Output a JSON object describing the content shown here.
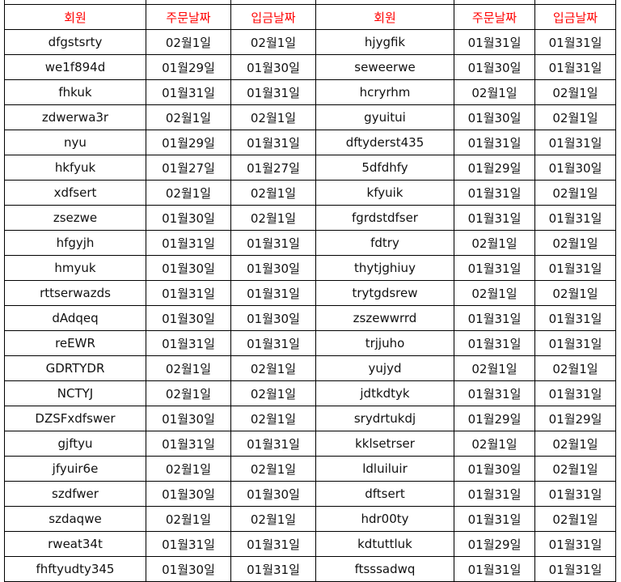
{
  "header_color": "#ff0000",
  "headers": [
    "회원",
    "주문날짜",
    "입금날짜",
    "회원",
    "주문날짜",
    "입금날짜"
  ],
  "rows": [
    [
      "dfgstsrty",
      "02월1일",
      "02월1일",
      "hjygfik",
      "01월31일",
      "01월31일"
    ],
    [
      "we1f894d",
      "01월29일",
      "01월30일",
      "seweerwe",
      "01월30일",
      "01월31일"
    ],
    [
      "fhkuk",
      "01월31일",
      "01월31일",
      "hcryrhm",
      "02월1일",
      "02월1일"
    ],
    [
      "zdwerwa3r",
      "02월1일",
      "02월1일",
      "gyuitui",
      "01월30일",
      "02월1일"
    ],
    [
      "nyu",
      "01월29일",
      "01월31일",
      "dftyderst435",
      "01월31일",
      "01월31일"
    ],
    [
      "hkfyuk",
      "01월27일",
      "01월27일",
      "5dfdhfy",
      "01월29일",
      "01월30일"
    ],
    [
      "xdfsert",
      "02월1일",
      "02월1일",
      "kfyuik",
      "01월31일",
      "02월1일"
    ],
    [
      "zsezwe",
      "01월30일",
      "02월1일",
      "fgrdstdfser",
      "01월31일",
      "01월31일"
    ],
    [
      "hfgyjh",
      "01월31일",
      "01월31일",
      "fdtry",
      "02월1일",
      "02월1일"
    ],
    [
      "hmyuk",
      "01월30일",
      "01월30일",
      "thytjghiuy",
      "01월31일",
      "01월31일"
    ],
    [
      "rttserwazds",
      "01월31일",
      "01월31일",
      "trytgdsrew",
      "02월1일",
      "02월1일"
    ],
    [
      "dAdqeq",
      "01월30일",
      "01월30일",
      "zszewwrrd",
      "01월31일",
      "01월31일"
    ],
    [
      "reEWR",
      "01월31일",
      "01월31일",
      "trjjuho",
      "01월31일",
      "01월31일"
    ],
    [
      "GDRTYDR",
      "02월1일",
      "02월1일",
      "yujyd",
      "02월1일",
      "02월1일"
    ],
    [
      "NCTYJ",
      "02월1일",
      "02월1일",
      "jdtkdtyk",
      "01월31일",
      "01월31일"
    ],
    [
      "DZSFxdfswer",
      "01월30일",
      "02월1일",
      "srydrtukdj",
      "01월29일",
      "01월29일"
    ],
    [
      "gjftyu",
      "01월31일",
      "01월31일",
      "kklsetrser",
      "02월1일",
      "02월1일"
    ],
    [
      "jfyuir6e",
      "02월1일",
      "02월1일",
      "ldluiluir",
      "01월30일",
      "02월1일"
    ],
    [
      "szdfwer",
      "01월30일",
      "01월30일",
      "dftsert",
      "01월31일",
      "01월31일"
    ],
    [
      "szdaqwe",
      "02월1일",
      "02월1일",
      "hdr00ty",
      "01월31일",
      "02월1일"
    ],
    [
      "rweat34t",
      "01월31일",
      "01월31일",
      "kdtuttluk",
      "01월29일",
      "01월31일"
    ],
    [
      "fhftyudty345",
      "01월30일",
      "01월31일",
      "ftsssadwq",
      "01월31일",
      "01월31일"
    ]
  ]
}
